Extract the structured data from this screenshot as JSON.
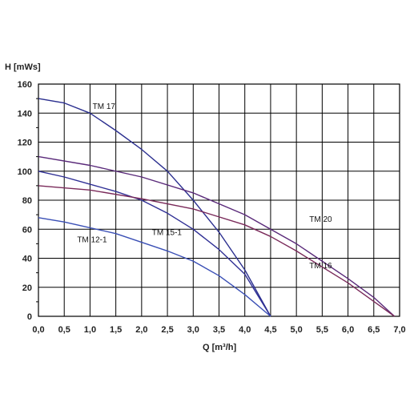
{
  "chart_data": {
    "type": "line",
    "title": "",
    "xlabel": "Q [m³/h]",
    "ylabel": "H [mWs]",
    "xlim": [
      0,
      7
    ],
    "ylim": [
      0,
      160
    ],
    "x_ticks": [
      "0,0",
      "0,5",
      "1,0",
      "1,5",
      "2,0",
      "2,5",
      "3,0",
      "3,5",
      "4,0",
      "4,5",
      "5,0",
      "5,5",
      "6,0",
      "6,5",
      "7,0"
    ],
    "y_ticks": [
      "0",
      "20",
      "40",
      "60",
      "80",
      "100",
      "120",
      "140",
      "160"
    ],
    "grid": true,
    "legend": "none",
    "series": [
      {
        "name": "TM 17",
        "color": "#2b2f8f",
        "points": [
          [
            0,
            150
          ],
          [
            0.5,
            147
          ],
          [
            1.0,
            140
          ],
          [
            1.5,
            128
          ],
          [
            2.0,
            115
          ],
          [
            2.5,
            100
          ],
          [
            3.0,
            80
          ],
          [
            3.5,
            58
          ],
          [
            4.0,
            32
          ],
          [
            4.5,
            0
          ]
        ]
      },
      {
        "name": "TM 20",
        "color": "#5a2a7a",
        "points": [
          [
            0,
            110
          ],
          [
            1.0,
            104
          ],
          [
            2.0,
            96
          ],
          [
            3.0,
            85
          ],
          [
            4.0,
            70
          ],
          [
            5.0,
            50
          ],
          [
            6.0,
            26
          ],
          [
            6.5,
            13
          ],
          [
            6.9,
            0
          ]
        ]
      },
      {
        "name": "TM 15-1",
        "color": "#2f2f95",
        "points": [
          [
            0,
            100
          ],
          [
            0.5,
            96
          ],
          [
            1.0,
            91
          ],
          [
            1.5,
            86
          ],
          [
            2.0,
            80
          ],
          [
            2.5,
            71
          ],
          [
            3.0,
            60
          ],
          [
            3.5,
            46
          ],
          [
            4.0,
            29
          ],
          [
            4.5,
            0
          ]
        ]
      },
      {
        "name": "TM 16",
        "color": "#7a2a5a",
        "points": [
          [
            0,
            90
          ],
          [
            1.0,
            87
          ],
          [
            2.0,
            81
          ],
          [
            3.0,
            74
          ],
          [
            4.0,
            63
          ],
          [
            4.5,
            55
          ],
          [
            5.0,
            45
          ],
          [
            6.0,
            23
          ],
          [
            6.9,
            0
          ]
        ]
      },
      {
        "name": "TM 12-1",
        "color": "#3a4fb5",
        "points": [
          [
            0,
            68
          ],
          [
            0.5,
            65
          ],
          [
            1.0,
            61
          ],
          [
            1.5,
            57
          ],
          [
            2.0,
            51
          ],
          [
            2.5,
            45
          ],
          [
            3.0,
            38
          ],
          [
            3.5,
            28
          ],
          [
            4.0,
            15
          ],
          [
            4.5,
            0
          ]
        ]
      }
    ],
    "labels": [
      {
        "text": "TM 17",
        "x": 1.05,
        "y": 143
      },
      {
        "text": "TM 20",
        "x": 5.25,
        "y": 65
      },
      {
        "text": "TM 15-1",
        "x": 2.2,
        "y": 56
      },
      {
        "text": "TM 16",
        "x": 5.25,
        "y": 33
      },
      {
        "text": "TM 12-1",
        "x": 0.75,
        "y": 51
      }
    ]
  }
}
